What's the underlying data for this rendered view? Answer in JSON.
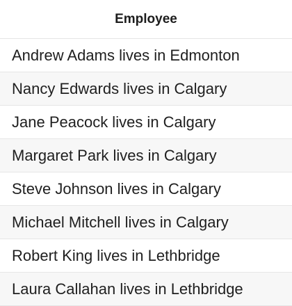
{
  "table": {
    "header": "Employee",
    "rows": [
      "Andrew Adams lives in Edmonton",
      "Nancy Edwards lives in Calgary",
      "Jane Peacock lives in Calgary",
      "Margaret Park lives in Calgary",
      "Steve Johnson lives in Calgary",
      "Michael Mitchell lives in Calgary",
      "Robert King lives in Lethbridge",
      "Laura Callahan lives in Lethbridge"
    ]
  }
}
